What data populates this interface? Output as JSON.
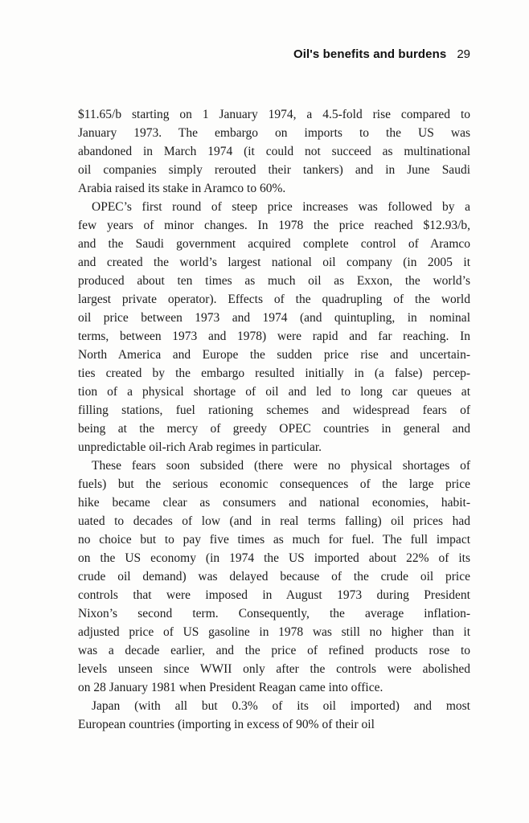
{
  "header": {
    "title": "Oil's benefits and burdens",
    "page_number": "29"
  },
  "page": {
    "background_color": "#fdfdfc",
    "text_color": "#1b1b1b",
    "paragraphs": [
      {
        "indent": false,
        "lines": [
          "$11.65/b starting on 1 January 1974, a 4.5-fold rise compared to",
          "January 1973. The embargo on imports to the US was",
          "abandoned in March 1974 (it could not succeed as multinational",
          "oil companies simply rerouted their tankers) and in June Saudi",
          "Arabia raised its stake in Aramco to 60%."
        ]
      },
      {
        "indent": true,
        "lines": [
          "OPEC’s first round of steep price increases was followed by a",
          "few years of minor changes. In 1978 the price reached $12.93/b,",
          "and the Saudi government acquired complete control of Aramco",
          "and created the world’s largest national oil company (in 2005 it",
          "produced about ten times as much oil as Exxon, the world’s",
          "largest private operator). Effects of the quadrupling of the world",
          "oil price between 1973 and 1974 (and quintupling, in nominal",
          "terms, between 1973 and 1978) were rapid and far reaching. In",
          "North America and Europe the sudden price rise and uncertain-",
          "ties created by the embargo resulted initially in (a false) percep-",
          "tion of a physical shortage of oil and led to long car queues at",
          "filling stations, fuel rationing schemes and widespread fears of",
          "being at the mercy of greedy OPEC countries in general and",
          "unpredictable oil-rich Arab regimes in particular."
        ]
      },
      {
        "indent": true,
        "lines": [
          "These fears soon subsided (there were no physical shortages of",
          "fuels) but the serious economic consequences of the large price",
          "hike became clear as consumers and national economies, habit-",
          "uated to decades of low (and in real terms falling) oil prices had",
          "no choice but to pay five times as much for fuel. The full impact",
          "on the US economy (in 1974 the US imported about 22% of its",
          "crude oil demand) was delayed because of the crude oil price",
          "controls that were imposed in August 1973 during President",
          "Nixon’s second term. Consequently, the average inflation-",
          "adjusted price of US gasoline in 1978 was still no higher than it",
          "was a decade earlier, and the price of refined products rose to",
          "levels unseen since WWII only after the controls were abolished",
          "on 28 January 1981 when President Reagan came into office."
        ]
      },
      {
        "indent": true,
        "lines": [
          "Japan (with all but 0.3% of its oil imported) and most",
          "European countries (importing in excess of 90% of their oil"
        ]
      }
    ]
  }
}
